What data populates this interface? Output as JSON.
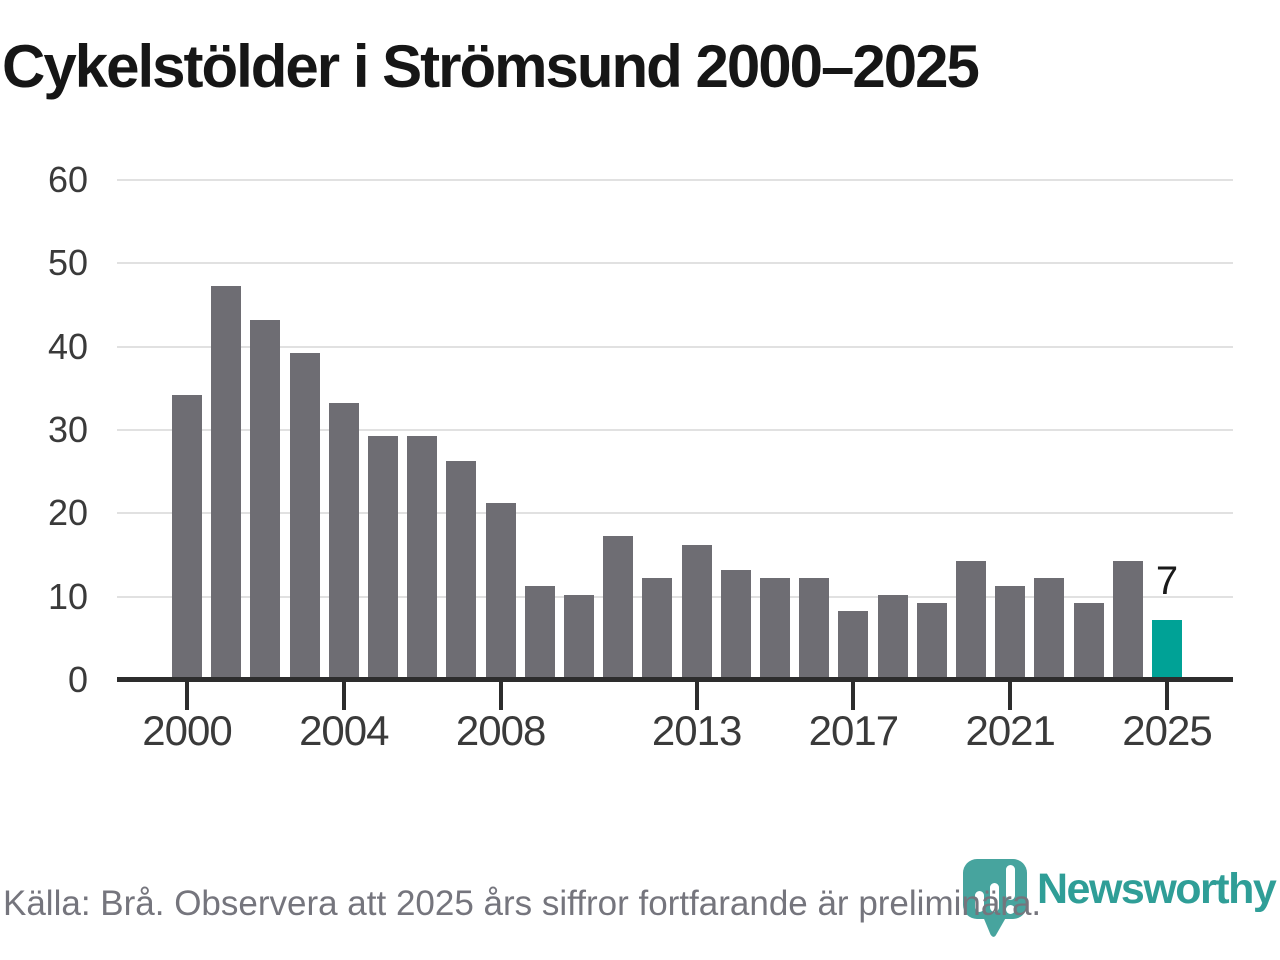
{
  "title": "Cykelstölder i Strömsund 2000–2025",
  "chart_data": {
    "type": "bar",
    "title": "Cykelstölder i Strömsund 2000–2025",
    "x": [
      2000,
      2001,
      2002,
      2003,
      2004,
      2005,
      2006,
      2007,
      2008,
      2009,
      2010,
      2011,
      2012,
      2013,
      2014,
      2015,
      2016,
      2017,
      2018,
      2019,
      2020,
      2021,
      2022,
      2023,
      2024,
      2025
    ],
    "values": [
      34,
      47,
      43,
      39,
      33,
      29,
      29,
      26,
      21,
      11,
      10,
      17,
      12,
      16,
      13,
      12,
      12,
      8,
      10,
      9,
      14,
      11,
      12,
      9,
      14,
      7
    ],
    "ylim": [
      0,
      60
    ],
    "yticks": [
      0,
      10,
      20,
      30,
      40,
      50,
      60
    ],
    "xticks": [
      2000,
      2004,
      2008,
      2013,
      2017,
      2021,
      2025
    ],
    "grid": "horizontal",
    "legend": "none",
    "highlight": {
      "year": 2025,
      "label": "7"
    },
    "colors": {
      "bar": "#6e6d73",
      "highlight": "#00a296",
      "grid": "#e1e1e1",
      "axis": "#2d2d2d",
      "tick_label": "#3a3a3a"
    }
  },
  "footer": {
    "source_note": "Källa: Brå. Observera att 2025 års siffror fortfarande är preliminära."
  },
  "logo": {
    "wordmark": "Newsworthy",
    "icon": "newsworthy-speech-bubble-chart-icon",
    "wordmark_color": "#2f9e97",
    "icon_color": "#47a49e"
  }
}
